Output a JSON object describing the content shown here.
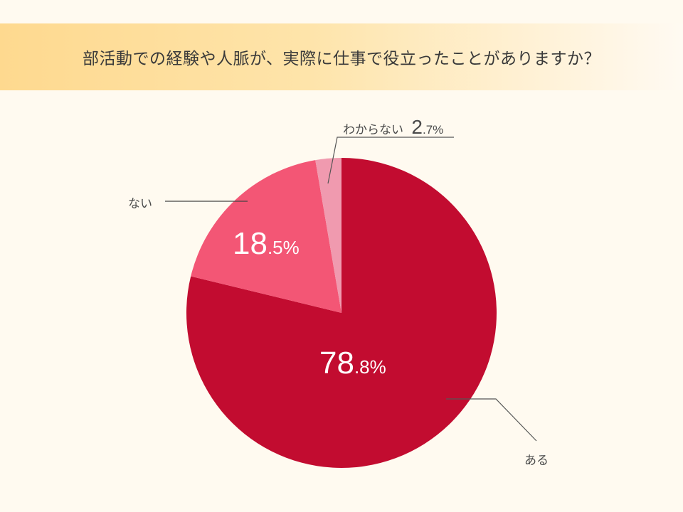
{
  "title": "部活動での経験や人脈が、実際に仕事で役立ったことがありますか？",
  "chart_data": {
    "type": "pie",
    "title": "部活動での経験や人脈が、実際に仕事で役立ったことがありますか？",
    "categories": [
      "ある",
      "ない",
      "わからない"
    ],
    "values": [
      78.8,
      18.5,
      2.7
    ],
    "unit": "%",
    "colors": [
      "#c20c30",
      "#f35675",
      "#f09aaf"
    ],
    "start_angle": "12 o'clock",
    "direction": "clockwise",
    "legend": "callout labels"
  },
  "labels": {
    "aru": {
      "name": "ある",
      "int": "78",
      "dec": ".8%"
    },
    "nai": {
      "name": "ない",
      "int": "18",
      "dec": ".5%"
    },
    "wakaranai": {
      "name": "わからない",
      "int": "2",
      "dec": ".7%"
    }
  },
  "colors": {
    "background": "#fffaf0",
    "title_band_start": "#fed98f",
    "leader_line": "#555555",
    "label_text": "#4a4a4a"
  }
}
